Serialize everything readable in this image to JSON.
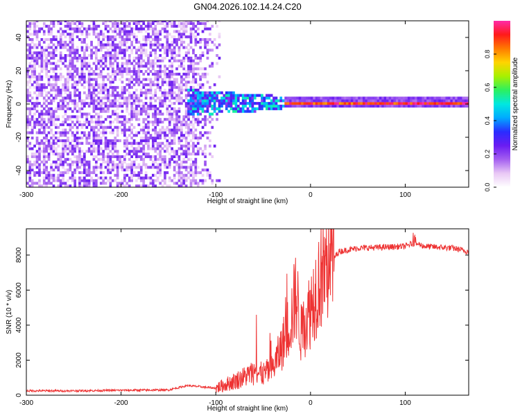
{
  "title": "GN04.2026.102.14.24.C20",
  "chart_data": [
    {
      "type": "heatmap",
      "title": "GN04.2026.102.14.24.C20",
      "xlabel": "Height of straight line (km)",
      "ylabel": "Frequency (Hz)",
      "xlim": [
        -300,
        167
      ],
      "ylim": [
        -50,
        50
      ],
      "x_ticks": [
        -300,
        -200,
        -100,
        0,
        100
      ],
      "y_ticks": [
        -40,
        -20,
        0,
        20,
        40
      ],
      "colorbar": {
        "label": "Normalized spectral amplitude",
        "range": [
          0.0,
          1.0
        ],
        "ticks": [
          0.0,
          0.2,
          0.4,
          0.6,
          0.8
        ],
        "colormap": [
          "#ffffff",
          "#e9c8f5",
          "#a45ff0",
          "#6a1cf2",
          "#2a2cff",
          "#00aaff",
          "#00e8e0",
          "#2cf060",
          "#a8f000",
          "#ffd400",
          "#ff7a00",
          "#ff1a1a",
          "#ff2aa8"
        ]
      },
      "features": [
        {
          "x_range": [
            -300,
            -95
          ],
          "freq_range": [
            -50,
            50
          ],
          "amplitude": [
            0.05,
            0.25
          ],
          "description": "broadband noise"
        },
        {
          "x_range": [
            -130,
            -30
          ],
          "freq_range": [
            -8,
            8
          ],
          "amplitude": [
            0.2,
            0.55
          ]
        },
        {
          "x_range": [
            -30,
            167
          ],
          "freq_center": 0,
          "amplitude": [
            0.8,
            1.0
          ]
        }
      ]
    },
    {
      "type": "line",
      "xlabel": "Height of straight line (km)",
      "ylabel": "SNR (10 * v/v)",
      "xlim": [
        -300,
        167
      ],
      "ylim": [
        0,
        9500
      ],
      "x_ticks": [
        -300,
        -200,
        -100,
        0,
        100
      ],
      "y_ticks": [
        0,
        2000,
        4000,
        6000,
        8000
      ],
      "color": "#ee3333",
      "series": [
        {
          "x": [
            -300,
            -250,
            -200,
            -150,
            -130,
            -100,
            -80,
            -60,
            -50,
            -40,
            -30,
            -20,
            -15,
            -10,
            0,
            10,
            20,
            30,
            50,
            80,
            100,
            110,
            120,
            150,
            167
          ],
          "y": [
            250,
            250,
            280,
            300,
            550,
            400,
            800,
            1300,
            1200,
            1500,
            2800,
            4500,
            5800,
            3500,
            5000,
            6800,
            7500,
            8200,
            8400,
            8450,
            8500,
            8700,
            8500,
            8400,
            8200
          ]
        }
      ]
    }
  ]
}
